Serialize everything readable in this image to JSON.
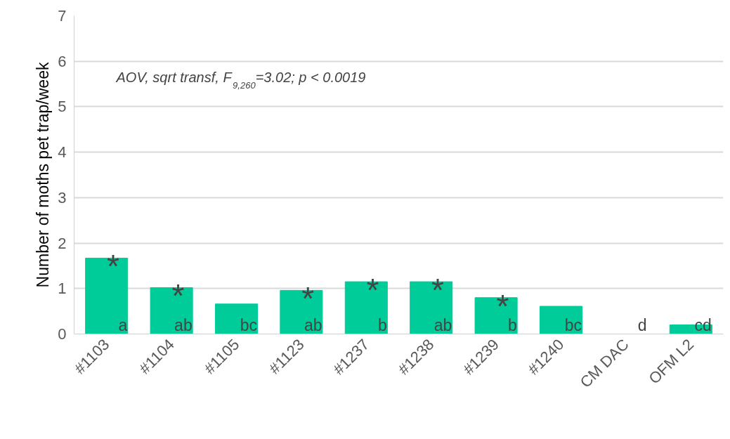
{
  "chart_data": {
    "type": "bar",
    "ylabel": "Number of moths pet trap/week",
    "categories": [
      "#1103",
      "#1104",
      "#1105",
      "#1123",
      "#1237",
      "#1238",
      "#1239",
      "#1240",
      "CM DAC",
      "OFM L2"
    ],
    "values": [
      1.67,
      1.02,
      0.66,
      0.96,
      1.15,
      1.15,
      0.8,
      0.61,
      0,
      0.2
    ],
    "color": "#00cc99",
    "ylim": [
      0,
      7
    ],
    "yticks": [
      0,
      1,
      2,
      3,
      4,
      5,
      6,
      7
    ],
    "grid": "y",
    "annotations": [
      "AOV, sqrt transf, F$_{9,260}$=3.02; p < 0.0019",
      {
        "text": "*",
        "x": "#1103",
        "y": 1.67
      },
      {
        "text": "*",
        "x": "#1104",
        "y": 1.02
      },
      {
        "text": "*",
        "x": "#1123",
        "y": 0.96
      },
      {
        "text": "*",
        "x": "#1237",
        "y": 1.15
      },
      {
        "text": "*",
        "x": "#1238",
        "y": 1.15
      },
      {
        "text": "*",
        "x": "#1239",
        "y": 0.8
      },
      {
        "text": "a",
        "x": "#1103",
        "y": 0
      },
      {
        "text": "ab",
        "x": "#1104",
        "y": 0
      },
      {
        "text": "bc",
        "x": "#1105",
        "y": 0
      },
      {
        "text": "ab",
        "x": "#1123",
        "y": 0
      },
      {
        "text": "b",
        "x": "#1237",
        "y": 0
      },
      {
        "text": "ab",
        "x": "#1238",
        "y": 0
      },
      {
        "text": "b",
        "x": "#1239",
        "y": 0
      },
      {
        "text": "bc",
        "x": "#1240",
        "y": 0
      },
      {
        "text": "d",
        "x": "CM DAC",
        "y": 0
      },
      {
        "text": "cd",
        "x": "OFM L2",
        "y": 0
      }
    ]
  }
}
